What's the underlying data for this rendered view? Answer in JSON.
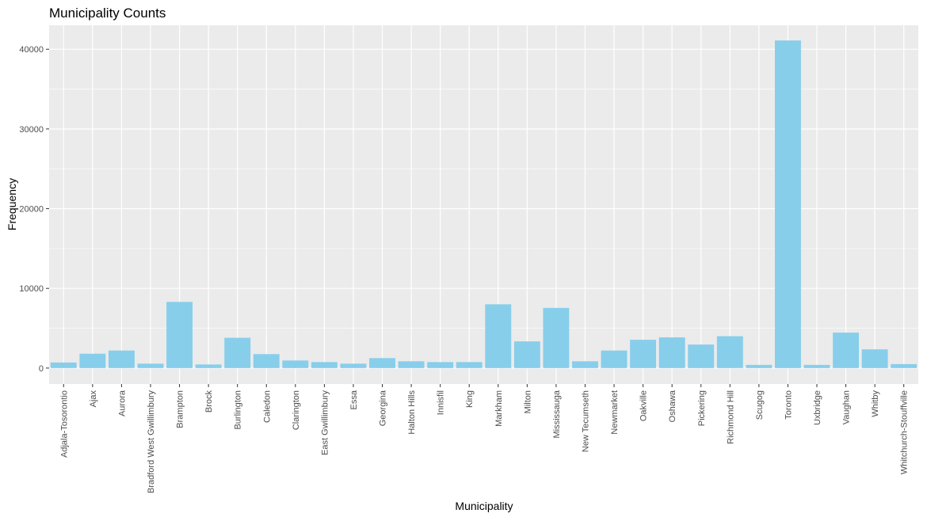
{
  "chart_data": {
    "type": "bar",
    "title": "Municipality Counts",
    "xlabel": "Municipality",
    "ylabel": "Frequency",
    "ylim": [
      -2000,
      43000
    ],
    "yticks": [
      0,
      10000,
      20000,
      30000,
      40000
    ],
    "ytick_labels": [
      "0",
      "10000",
      "20000",
      "30000",
      "40000"
    ],
    "grid": true,
    "legend": "none",
    "colors": {
      "bar": "#87CEEB",
      "panel": "#EBEBEB",
      "grid": "#FFFFFF",
      "text": "#4D4D4D",
      "title": "#000000"
    },
    "categories": [
      "Adjala-Tosorontio",
      "Ajax",
      "Aurora",
      "Bradford West Gwillimbury",
      "Brampton",
      "Brock",
      "Burlington",
      "Caledon",
      "Clarington",
      "East Gwillimbury",
      "Essa",
      "Georgina",
      "Halton Hills",
      "Innisfil",
      "King",
      "Markham",
      "Milton",
      "Mississauga",
      "New Tecumseth",
      "Newmarket",
      "Oakville",
      "Oshawa",
      "Pickering",
      "Richmond Hill",
      "Scugog",
      "Toronto",
      "Uxbridge",
      "Vaughan",
      "Whitby",
      "Whitchurch-Stouffville"
    ],
    "values": [
      700,
      1800,
      2200,
      550,
      8300,
      450,
      3800,
      1750,
      950,
      750,
      550,
      1250,
      850,
      750,
      750,
      8000,
      3350,
      7550,
      850,
      2200,
      3550,
      3850,
      2950,
      4000,
      400,
      41100,
      400,
      4450,
      2350,
      500
    ]
  }
}
